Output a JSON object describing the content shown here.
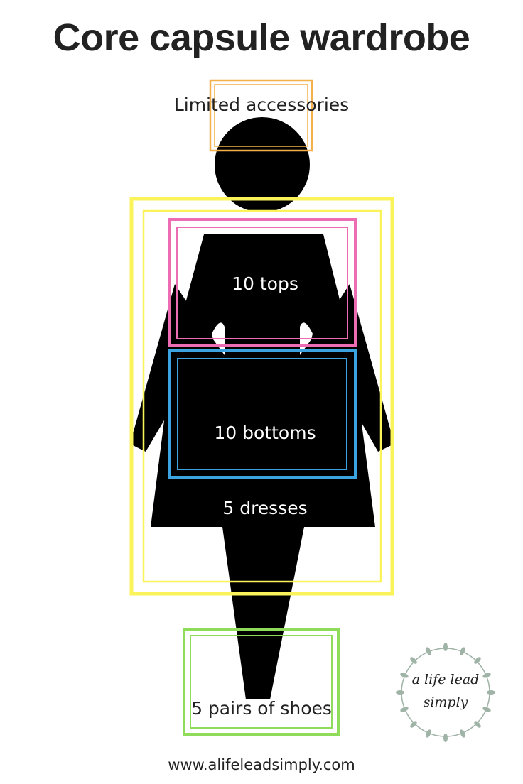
{
  "title": "Core capsule wardrobe",
  "labels": {
    "accessories": "Limited accessories",
    "tops": "10 tops",
    "bottoms": "10 bottoms",
    "dresses": "5 dresses",
    "shoes": "5 pairs of shoes"
  },
  "logo": {
    "line1": "a life lead",
    "line2": "simply"
  },
  "footer_url": "www.alifeleadsimply.com",
  "colors": {
    "accessories": "#f4b04a",
    "dresses": "#fbf35a",
    "tops": "#ec6db3",
    "bottoms": "#3aa3e0",
    "shoes": "#8fdc5b",
    "silhouette": "#000000",
    "wreath": "#9fb3a6"
  }
}
